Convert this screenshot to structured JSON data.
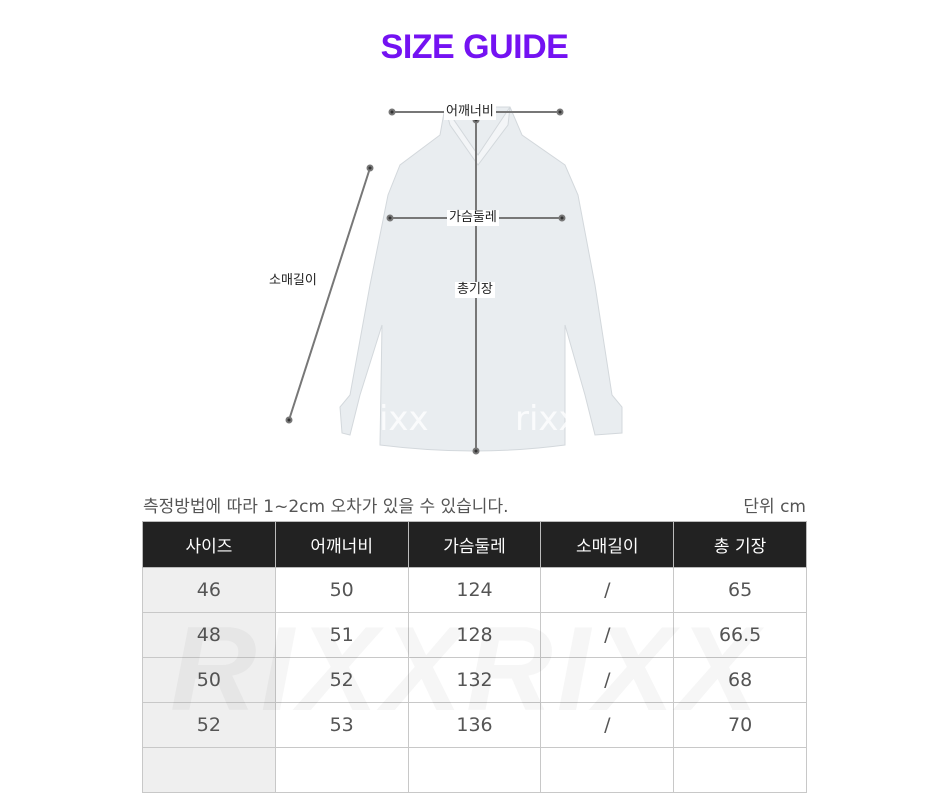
{
  "title": "SIZE GUIDE",
  "diagram": {
    "shoulder": "어깨너비",
    "chest": "가슴둘레",
    "sleeve": "소매길이",
    "length": "총기장",
    "watermark": "rixx"
  },
  "note": "측정방법에 따라 1~2cm 오차가 있을 수 있습니다.",
  "unit": "단위 cm",
  "table": {
    "headers": [
      "사이즈",
      "어깨너비",
      "가슴둘레",
      "소매길이",
      "총 기장"
    ],
    "rows": [
      [
        "46",
        "50",
        "124",
        "/",
        "65"
      ],
      [
        "48",
        "51",
        "128",
        "/",
        "66.5"
      ],
      [
        "50",
        "52",
        "132",
        "/",
        "68"
      ],
      [
        "52",
        "53",
        "136",
        "/",
        "70"
      ],
      [
        "",
        "",
        "",
        "",
        ""
      ]
    ]
  },
  "watermark": "RIXXRIXX",
  "colors": {
    "title": "#7412f2",
    "header_bg": "#222222"
  }
}
